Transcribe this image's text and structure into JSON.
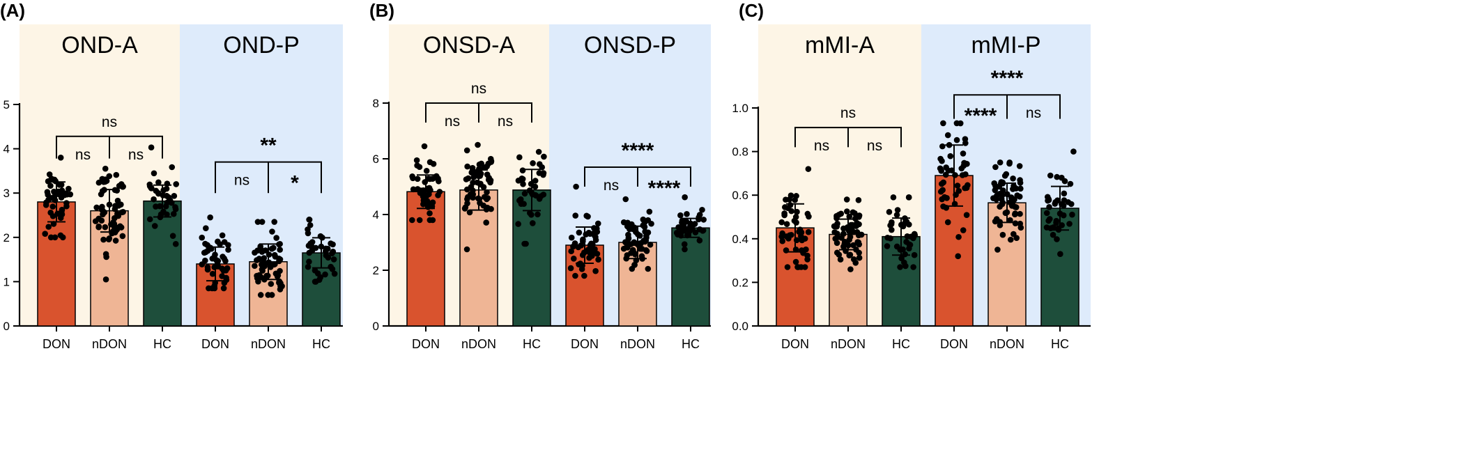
{
  "colors": {
    "DON": "#d9532e",
    "nDON": "#efb595",
    "HC": "#1e4e3b",
    "anterior_bg": "#fdf5e6",
    "posterior_bg": "#deebfb",
    "dot": "#000000"
  },
  "panels": [
    {
      "letter": "(A)"
    },
    {
      "letter": "(B)"
    },
    {
      "letter": "(C)"
    }
  ],
  "chart_data": [
    {
      "type": "bar",
      "panel": "(A)",
      "groups": [
        {
          "title": "OND-A",
          "background": "anterior"
        },
        {
          "title": "OND-P",
          "background": "posterior"
        }
      ],
      "categories": [
        "DON",
        "nDON",
        "HC",
        "DON",
        "nDON",
        "HC"
      ],
      "values": [
        2.8,
        2.6,
        2.82,
        1.4,
        1.45,
        1.65
      ],
      "sd": [
        0.45,
        0.48,
        0.36,
        0.38,
        0.4,
        0.34
      ],
      "n": [
        48,
        60,
        38,
        48,
        60,
        38
      ],
      "ranges": [
        [
          2.0,
          3.8
        ],
        [
          1.05,
          3.55
        ],
        [
          1.85,
          4.03
        ],
        [
          0.85,
          2.45
        ],
        [
          0.7,
          2.35
        ],
        [
          1.0,
          2.4
        ]
      ],
      "ylim": [
        0,
        5
      ],
      "yticks": [
        0,
        1,
        2,
        3,
        4,
        5
      ],
      "ytick_labels": [
        "0",
        "1",
        "2",
        "3",
        "4",
        "5"
      ],
      "xlabel": "",
      "ylabel": "",
      "significance": [
        {
          "from": 0,
          "to": 2,
          "mid": 1,
          "top": 4.28,
          "drop": 3.78,
          "label": "ns"
        },
        {
          "from": 0,
          "to": 2,
          "mid": 1,
          "pair_labels": [
            "ns",
            "ns"
          ]
        },
        {
          "from": 3,
          "to": 5,
          "mid": 4,
          "top": 3.7,
          "drop": 3.0,
          "label": "**"
        },
        {
          "from": 3,
          "to": 5,
          "mid": 4,
          "pair_labels": [
            "ns",
            "*"
          ]
        }
      ]
    },
    {
      "type": "bar",
      "panel": "(B)",
      "groups": [
        {
          "title": "ONSD-A",
          "background": "anterior"
        },
        {
          "title": "ONSD-P",
          "background": "posterior"
        }
      ],
      "categories": [
        "DON",
        "nDON",
        "HC",
        "DON",
        "nDON",
        "HC"
      ],
      "values": [
        4.82,
        4.88,
        4.88,
        2.9,
        3.0,
        3.52
      ],
      "sd": [
        0.6,
        0.72,
        0.74,
        0.65,
        0.58,
        0.34
      ],
      "n": [
        48,
        60,
        38,
        48,
        60,
        38
      ],
      "ranges": [
        [
          3.8,
          6.45
        ],
        [
          2.75,
          6.5
        ],
        [
          2.95,
          6.25
        ],
        [
          1.8,
          5.0
        ],
        [
          2.05,
          4.55
        ],
        [
          2.75,
          4.62
        ]
      ],
      "ylim": [
        0,
        8
      ],
      "yticks": [
        0,
        2,
        4,
        6,
        8
      ],
      "ytick_labels": [
        "0",
        "2",
        "4",
        "6",
        "8"
      ],
      "xlabel": "",
      "ylabel": "",
      "significance": [
        {
          "from": 0,
          "to": 2,
          "mid": 1,
          "top": 8.0,
          "drop": 7.3,
          "label": "ns"
        },
        {
          "from": 0,
          "to": 2,
          "mid": 1,
          "pair_labels": [
            "ns",
            "ns"
          ]
        },
        {
          "from": 3,
          "to": 5,
          "mid": 4,
          "top": 5.7,
          "drop": 5.0,
          "label": "****"
        },
        {
          "from": 3,
          "to": 5,
          "mid": 4,
          "pair_labels": [
            "ns",
            "****"
          ]
        }
      ]
    },
    {
      "type": "bar",
      "panel": "(C)",
      "groups": [
        {
          "title": "mMI-A",
          "background": "anterior"
        },
        {
          "title": "mMI-P",
          "background": "posterior"
        }
      ],
      "categories": [
        "DON",
        "nDON",
        "HC",
        "DON",
        "nDON",
        "HC"
      ],
      "values": [
        0.45,
        0.42,
        0.41,
        0.69,
        0.565,
        0.54
      ],
      "sd": [
        0.11,
        0.07,
        0.085,
        0.14,
        0.09,
        0.1
      ],
      "n": [
        48,
        60,
        38,
        48,
        60,
        38
      ],
      "ranges": [
        [
          0.27,
          0.72
        ],
        [
          0.26,
          0.58
        ],
        [
          0.27,
          0.59
        ],
        [
          0.32,
          0.93
        ],
        [
          0.35,
          0.75
        ],
        [
          0.33,
          0.8
        ]
      ],
      "ylim": [
        0,
        1.0
      ],
      "yticks": [
        0,
        0.2,
        0.4,
        0.6,
        0.8,
        1.0
      ],
      "ytick_labels": [
        "0.0",
        "0.2",
        "0.4",
        "0.6",
        "0.8",
        "1.0"
      ],
      "xlabel": "",
      "ylabel": "",
      "significance": [
        {
          "from": 0,
          "to": 2,
          "mid": 1,
          "top": 0.91,
          "drop": 0.82,
          "label": "ns"
        },
        {
          "from": 0,
          "to": 2,
          "mid": 1,
          "pair_labels": [
            "ns",
            "ns"
          ]
        },
        {
          "from": 3,
          "to": 5,
          "mid": 4,
          "top": 1.06,
          "drop": 0.95,
          "label": "****"
        },
        {
          "from": 3,
          "to": 5,
          "mid": 4,
          "pair_labels": [
            "****",
            "ns"
          ]
        }
      ]
    }
  ]
}
